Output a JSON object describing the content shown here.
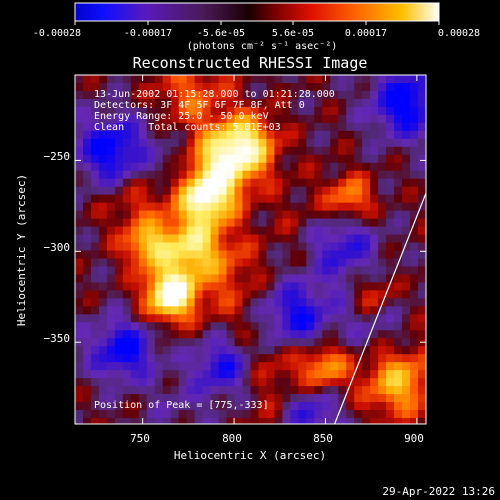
{
  "colorbar": {
    "tick_labels": [
      "-0.00028",
      "-0.00017",
      "-5.6e-05",
      "5.6e-05",
      "0.00017",
      "0.00028"
    ],
    "unit_label": "(photons cm⁻² s⁻¹ asec⁻²)"
  },
  "chart_data": {
    "type": "heatmap",
    "title": "Reconstructed RHESSI Image",
    "xlabel": "Heliocentric X (arcsec)",
    "ylabel": "Heliocentric Y (arcsec)",
    "xlim": [
      713,
      905
    ],
    "ylim": [
      -395,
      -203
    ],
    "x_ticks": [
      750,
      800,
      850,
      900
    ],
    "y_ticks": [
      -250,
      -300,
      -350
    ],
    "x_tick_labels": [
      "750",
      "800",
      "850",
      "900"
    ],
    "y_tick_labels": [
      "−250",
      "−300",
      "−350"
    ],
    "colorbar_range": [
      -0.00028,
      0.00028
    ],
    "colormap": "blue-purple-red-orange-yellow-white",
    "annotations": [
      "13-Jun-2002 01:15:28.000 to 01:21:28.000",
      "Detectors: 3F 4F 5F 6F 7F 8F, Att 0",
      "Energy Range: 25.0 - 50.0 keV",
      "Clean    Total counts: 5.01E+03"
    ],
    "peak_label": "Position of Peak = [775,-333]",
    "peak_position": [
      775,
      -333
    ],
    "limb_line": {
      "x": [
        855,
        905
      ],
      "y": [
        -395,
        -268
      ]
    }
  },
  "timestamp": "29-Apr-2022 13:26"
}
